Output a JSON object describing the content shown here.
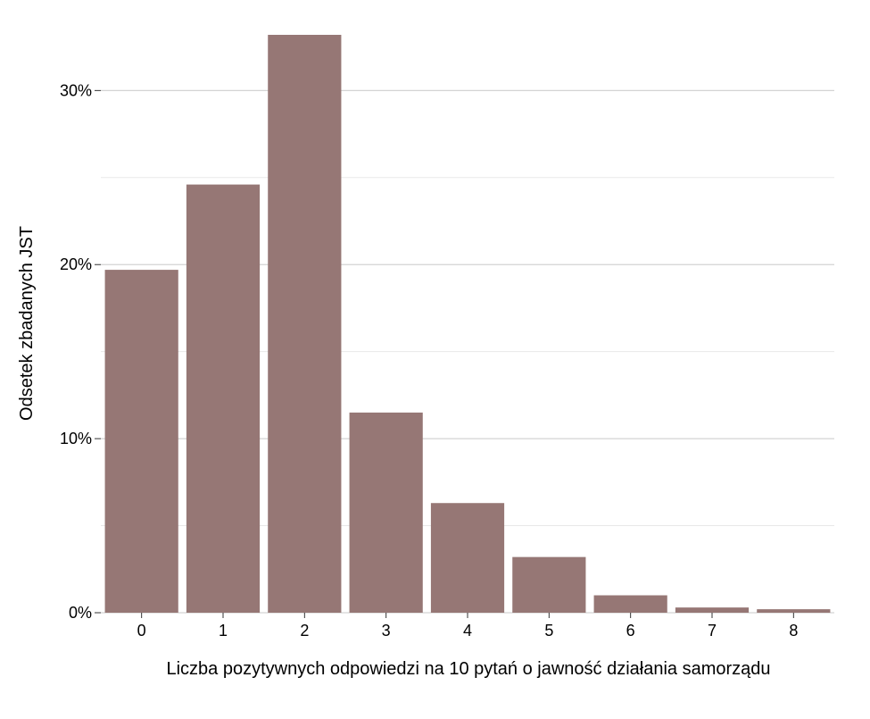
{
  "chart_data": {
    "type": "bar",
    "title": "",
    "xlabel": "Liczba pozytywnych odpowiedzi na 10 pytań o jawność działania samorządu",
    "ylabel": "Odsetek zbadanych JST",
    "categories": [
      "0",
      "1",
      "2",
      "3",
      "4",
      "5",
      "6",
      "7",
      "8"
    ],
    "values": [
      19.7,
      24.6,
      33.2,
      11.5,
      6.3,
      3.2,
      1.0,
      0.3,
      0.2
    ],
    "ylim": [
      0,
      33.2
    ],
    "yticks": [
      {
        "value": 0,
        "label": "0%"
      },
      {
        "value": 10,
        "label": "10%"
      },
      {
        "value": 20,
        "label": "20%"
      },
      {
        "value": 30,
        "label": "30%"
      }
    ],
    "minor_gridlines": [
      5,
      15,
      25
    ],
    "grid": true,
    "legend": "none",
    "bar_color": "#967775",
    "major_grid_color": "#d3d3d3",
    "minor_grid_color": "#e8e8e8"
  }
}
